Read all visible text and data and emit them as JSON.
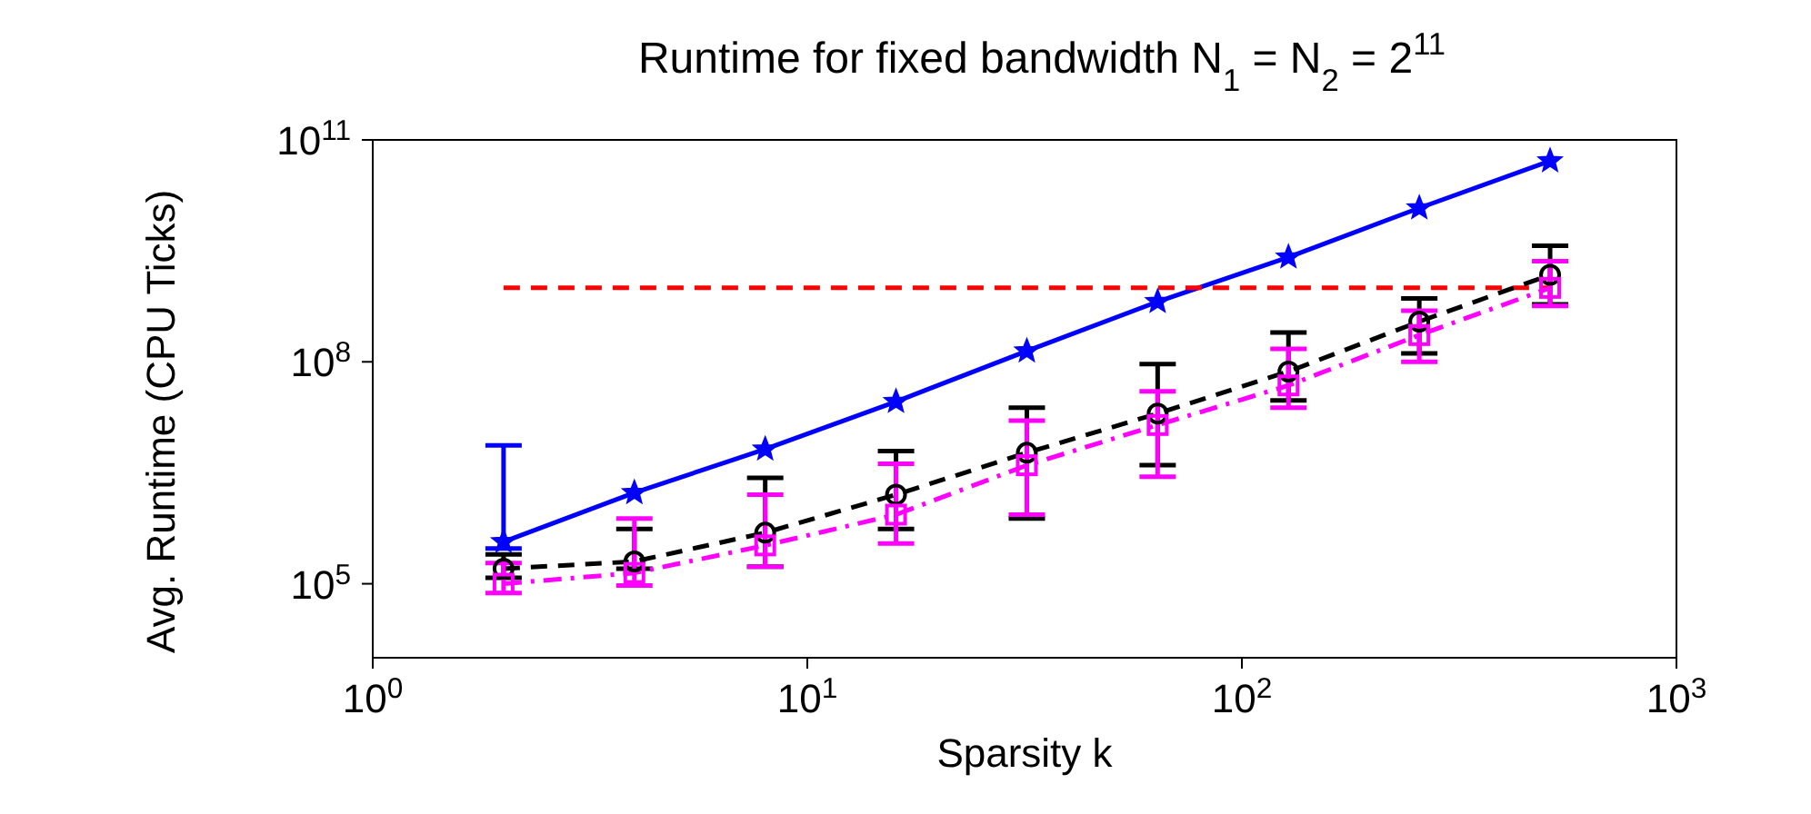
{
  "chart_data": {
    "type": "line",
    "title": "Runtime for fixed bandwidth N$_{1}$ = N$_{2}$ = 2$^{11}$",
    "xlabel": "Sparsity k",
    "ylabel": "Avg. Runtime (CPU Ticks)",
    "log": "xy",
    "grid": false,
    "legend": false,
    "x": [
      2,
      4,
      8,
      16,
      32,
      64,
      128,
      256,
      512
    ],
    "xlim": [
      1,
      1000
    ],
    "xticks": [
      {
        "value": 1,
        "label": "10$^{0}$"
      },
      {
        "value": 10,
        "label": "10$^{1}$"
      },
      {
        "value": 100,
        "label": "10$^{2}$"
      },
      {
        "value": 1000,
        "label": "10$^{3}$"
      }
    ],
    "ylim": [
      10000,
      100000000000
    ],
    "yticks": [
      {
        "value": 100000,
        "label": "10$^{5}$"
      },
      {
        "value": 100000000,
        "label": "10$^{8}$"
      },
      {
        "value": 100000000000,
        "label": "10$^{11}$"
      }
    ],
    "series": [
      {
        "color": "#0000ff",
        "marker": "star",
        "line_style": "solid",
        "values": [
          370000,
          1700000,
          6600000,
          29000000,
          140000000,
          650000000,
          2600000000,
          12000000000,
          52000000000
        ],
        "errors": [
          [
            300000,
            7400000
          ],
          null,
          null,
          null,
          null,
          null,
          null,
          null,
          null
        ]
      },
      {
        "color": "#ff0000",
        "marker": "none",
        "line_style": "dashed",
        "x": [
          2,
          512
        ],
        "values": [
          1000000000,
          1000000000
        ]
      },
      {
        "color": "#000000",
        "marker": "circle",
        "line_style": "dashed",
        "values": [
          160000,
          200000,
          490000,
          1600000,
          5900000,
          20000000,
          74000000,
          350000000,
          1500000000
        ],
        "errors": [
          [
            120000,
            250000
          ],
          [
            160000,
            550000
          ],
          [
            170000,
            2700000
          ],
          [
            550000,
            6200000
          ],
          [
            760000,
            24000000
          ],
          [
            4000000,
            93000000
          ],
          [
            30000000,
            250000000
          ],
          [
            130000000,
            720000000
          ],
          [
            600000000,
            3700000000
          ]
        ]
      },
      {
        "color": "#ff00ff",
        "marker": "square",
        "line_style": "dashdot",
        "values": [
          100000,
          140000,
          330000,
          860000,
          4000000,
          14000000,
          48000000,
          230000000,
          1000000000
        ],
        "errors": [
          [
            75000,
            190000
          ],
          [
            95000,
            760000
          ],
          [
            170000,
            1600000
          ],
          [
            350000,
            4200000
          ],
          [
            860000,
            16000000
          ],
          [
            2800000,
            40000000
          ],
          [
            24000000,
            150000000
          ],
          [
            100000000,
            490000000
          ],
          [
            570000000,
            2300000000
          ]
        ]
      }
    ]
  }
}
